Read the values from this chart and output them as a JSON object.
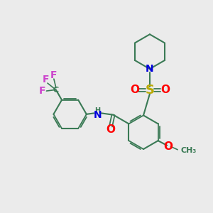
{
  "background_color": "#ebebeb",
  "bond_color": "#3a7a55",
  "N_color": "#0000dd",
  "O_color": "#ff0000",
  "S_color": "#bbaa00",
  "F_color": "#cc44cc",
  "NH_color": "#0000dd",
  "figsize": [
    3.0,
    3.0
  ],
  "dpi": 100,
  "xlim": [
    0,
    10
  ],
  "ylim": [
    0,
    10
  ]
}
